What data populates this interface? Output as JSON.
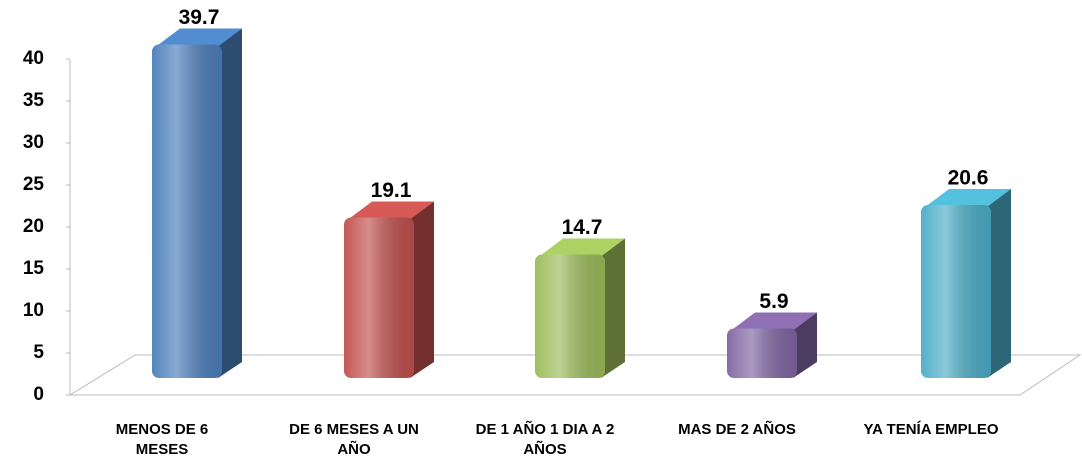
{
  "chart_data": {
    "type": "bar3d",
    "categories": [
      "MENOS DE 6 MESES",
      "DE 6 MESES A UN AÑO",
      "DE 1 AÑO 1 DIA A 2 AÑOS",
      "MAS DE 2 AÑOS",
      "YA TENÍA EMPLEO"
    ],
    "values": [
      39.7,
      19.1,
      14.7,
      5.9,
      20.6
    ],
    "colors": [
      "#4a7ebb",
      "#c0504d",
      "#9bbb59",
      "#8064a2",
      "#4bacc6"
    ],
    "ylim": [
      0,
      40
    ],
    "yticks": [
      0,
      5,
      10,
      15,
      20,
      25,
      30,
      35,
      40
    ]
  }
}
